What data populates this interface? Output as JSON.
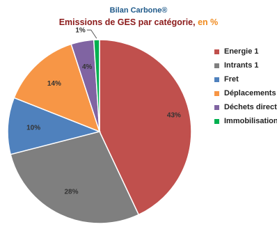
{
  "chart_data": {
    "type": "pie",
    "title": "Bilan Carbone®",
    "subtitle_main": "Emissions de GES par catégorie, ",
    "subtitle_unit": "en %",
    "slices": [
      {
        "name": "Energie 1",
        "value": 43,
        "label": "43%",
        "color": "#c0504d"
      },
      {
        "name": "Intrants 1",
        "value": 28,
        "label": "28%",
        "color": "#7f7f7f"
      },
      {
        "name": "Fret",
        "value": 10,
        "label": "10%",
        "color": "#4f81bd"
      },
      {
        "name": "Déplacements",
        "value": 14,
        "label": "14%",
        "color": "#f79646"
      },
      {
        "name": "Déchets directs",
        "value": 4,
        "label": "4%",
        "color": "#8064a2"
      },
      {
        "name": "Immobilisations",
        "value": 1,
        "label": "1%",
        "color": "#00b050"
      }
    ],
    "legend_position": "right"
  }
}
